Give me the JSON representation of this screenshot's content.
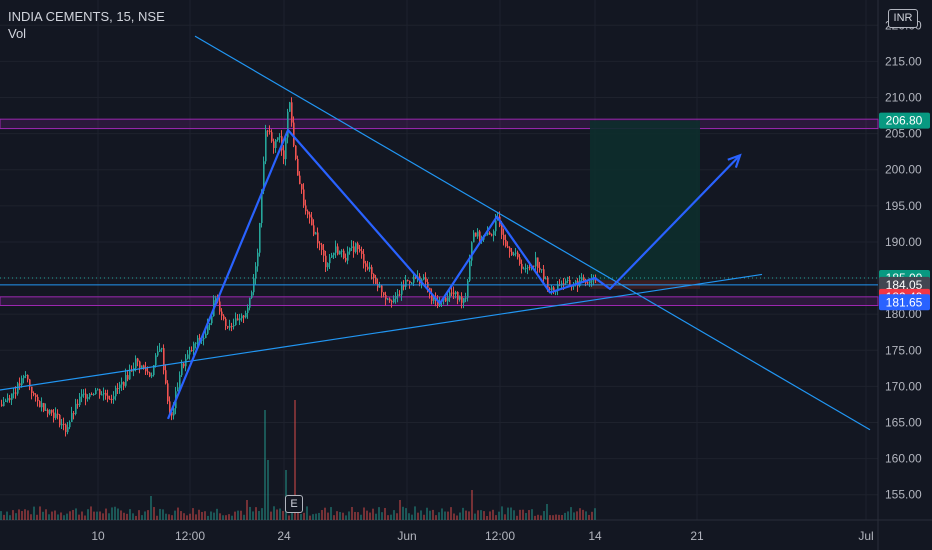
{
  "legend": {
    "title": "INDIA CEMENTS, 15, NSE",
    "indicator": "Vol"
  },
  "currency_label": "INR",
  "event_marker": "E",
  "colors": {
    "background": "#131722",
    "grid": "#1e222d",
    "axis_text": "#b2b5be",
    "up": "#26a69a",
    "down": "#ef5350",
    "trendline": "#2196f3",
    "pattern": "#2962ff",
    "zone": "#9c27b0",
    "target_zone": "#0d2d2c",
    "stop_zone": "#3e1f24",
    "price_dotted": "#26a69a"
  },
  "chart_data": {
    "type": "candlestick",
    "title": "INDIA CEMENTS, 15, NSE",
    "ylim": [
      151.5,
      223.5
    ],
    "y_ticks": [
      155,
      160,
      165,
      170,
      175,
      180,
      185,
      190,
      195,
      200,
      205,
      210,
      215,
      220
    ],
    "y_tick_labels": [
      "155.00",
      "160.00",
      "165.00",
      "170.00",
      "175.00",
      "180.00",
      "185.00",
      "190.00",
      "195.00",
      "200.00",
      "205.00",
      "210.00",
      "215.00",
      "220.00"
    ],
    "x_tick_labels": [
      "10",
      "12:00",
      "24",
      "Jun",
      "12:00",
      "14",
      "21",
      "Jul"
    ],
    "price_path": [
      [
        0,
        167.5
      ],
      [
        15,
        169.5
      ],
      [
        25,
        171.5
      ],
      [
        35,
        168.0
      ],
      [
        45,
        167.0
      ],
      [
        55,
        166.0
      ],
      [
        65,
        164.0
      ],
      [
        80,
        168.5
      ],
      [
        95,
        169.5
      ],
      [
        110,
        168.5
      ],
      [
        125,
        171.0
      ],
      [
        135,
        173.5
      ],
      [
        150,
        171.5
      ],
      [
        160,
        176.0
      ],
      [
        170,
        165.0
      ],
      [
        180,
        172.5
      ],
      [
        195,
        176.0
      ],
      [
        205,
        177.0
      ],
      [
        215,
        182.5
      ],
      [
        225,
        178.5
      ],
      [
        240,
        179.0
      ],
      [
        250,
        182.0
      ],
      [
        258,
        190.0
      ],
      [
        262,
        200.0
      ],
      [
        266,
        206.5
      ],
      [
        272,
        203.0
      ],
      [
        278,
        205.0
      ],
      [
        283,
        201.0
      ],
      [
        288,
        210.5
      ],
      [
        295,
        201.0
      ],
      [
        305,
        194.0
      ],
      [
        315,
        191.0
      ],
      [
        325,
        187.0
      ],
      [
        335,
        189.0
      ],
      [
        345,
        188.0
      ],
      [
        355,
        189.5
      ],
      [
        365,
        187.0
      ],
      [
        375,
        184.5
      ],
      [
        385,
        182.5
      ],
      [
        395,
        182.0
      ],
      [
        405,
        184.5
      ],
      [
        415,
        185.0
      ],
      [
        425,
        184.5
      ],
      [
        430,
        182.0
      ],
      [
        440,
        181.5
      ],
      [
        450,
        183.0
      ],
      [
        460,
        182.0
      ],
      [
        465,
        182.5
      ],
      [
        472,
        191.5
      ],
      [
        480,
        190.5
      ],
      [
        490,
        191.0
      ],
      [
        497,
        193.0
      ],
      [
        505,
        190.0
      ],
      [
        515,
        188.0
      ],
      [
        525,
        186.0
      ],
      [
        535,
        187.5
      ],
      [
        545,
        184.5
      ],
      [
        552,
        183.0
      ],
      [
        560,
        184.5
      ],
      [
        570,
        184.0
      ],
      [
        580,
        184.5
      ],
      [
        595,
        185.0
      ]
    ],
    "volume_spikes": [
      [
        263,
        0.55
      ],
      [
        293,
        0.6
      ],
      [
        266,
        0.3
      ],
      [
        286,
        0.25
      ],
      [
        470,
        0.15
      ],
      [
        150,
        0.12
      ],
      [
        245,
        0.1
      ],
      [
        400,
        0.1
      ],
      [
        545,
        0.08
      ]
    ],
    "price_labels": [
      {
        "value": 206.8,
        "text": "206.80",
        "color": "#089981"
      },
      {
        "value": 185.0,
        "text": "185.00",
        "color": "#089981"
      },
      {
        "value": 184.05,
        "text": "184.05",
        "color": "#434651"
      },
      {
        "value": 182.4,
        "text": "182.40",
        "color": "#f23645"
      },
      {
        "value": 181.65,
        "text": "181.65",
        "color": "#2962ff"
      }
    ],
    "horizontal_lines": [
      {
        "value": 184.05,
        "style": "solid",
        "color": "#2196f3"
      }
    ],
    "zones": [
      {
        "top": 207.0,
        "bottom": 205.7,
        "color": "#9c27b0"
      },
      {
        "top": 182.4,
        "bottom": 181.2,
        "color": "#9c27b0"
      }
    ],
    "trendlines": [
      {
        "from": [
          195,
          218.5
        ],
        "to": [
          870,
          164.0
        ]
      },
      {
        "from": [
          0,
          169.5
        ],
        "to": [
          762,
          185.5
        ]
      }
    ],
    "pattern_path": [
      [
        168,
        165.5
      ],
      [
        288,
        205.5
      ],
      [
        440,
        181.5
      ],
      [
        497,
        193.5
      ],
      [
        550,
        183.0
      ],
      [
        595,
        185.0
      ],
      [
        610,
        183.5
      ],
      [
        740,
        202.0
      ]
    ],
    "position_tool": {
      "x_start": 590,
      "x_end": 700,
      "entry": 184.7,
      "target": 206.8,
      "stop": 183.5
    }
  }
}
